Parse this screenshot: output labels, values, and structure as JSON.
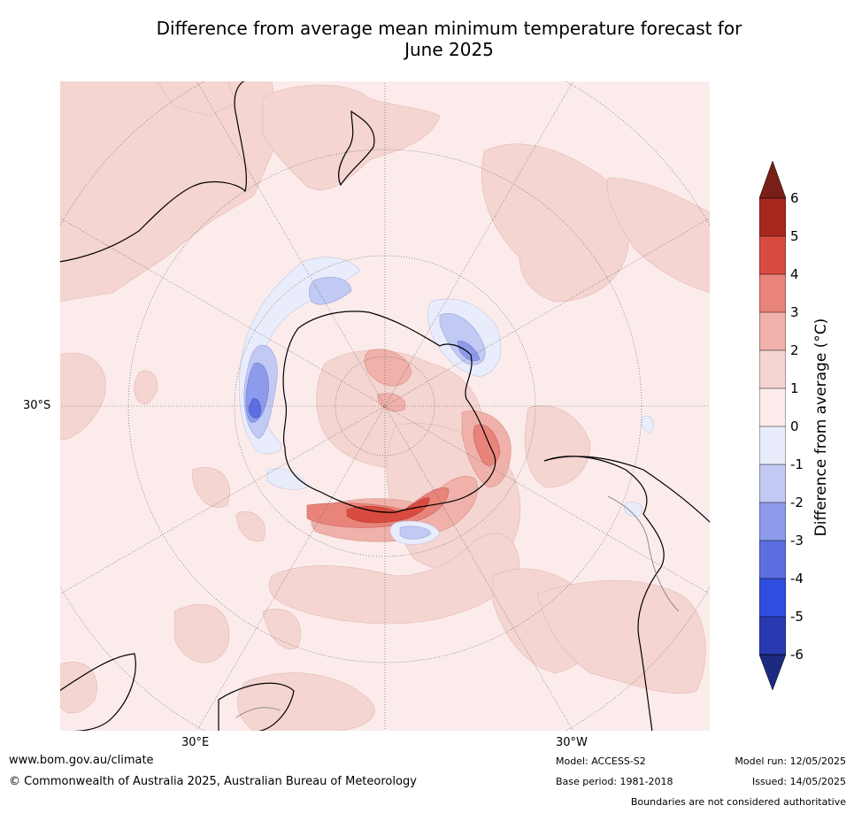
{
  "title_line1": "Difference from average mean minimum temperature forecast for",
  "title_line2": "June 2025",
  "map": {
    "projection": "south-polar-stereographic",
    "lat_label": "30°S",
    "lon_labels": {
      "east": "30°E",
      "west": "30°W"
    }
  },
  "colorbar": {
    "label": "Difference from average ($^\\circ$C)",
    "label_display": "Difference from average (°C)",
    "ticks": [
      "6",
      "5",
      "4",
      "3",
      "2",
      "1",
      "0",
      "-1",
      "-2",
      "-3",
      "-4",
      "-5",
      "-6"
    ],
    "colors": {
      "over": "#7a1f18",
      "5_6": "#a8281f",
      "4_5": "#d94b40",
      "3_4": "#e8847a",
      "2_3": "#efb1aa",
      "1_2": "#f4d5d1",
      "0_1": "#fbeceb",
      "m1_0": "#e9ecfa",
      "m2_m1": "#c2c9f2",
      "m3_m2": "#8d9bea",
      "m4_m3": "#5b6fe0",
      "m5_m4": "#2f4ee0",
      "m6_m5": "#283ab0",
      "under": "#1c2a80"
    }
  },
  "footer": {
    "website": "www.bom.gov.au/climate",
    "copyright": "© Commonwealth of Australia 2025, Australian Bureau of Meteorology",
    "model": "Model: ACCESS-S2",
    "base_period": "Base period: 1981-2018",
    "model_run": "Model run: 12/05/2025",
    "issued": "Issued: 14/05/2025",
    "disclaimer": "Boundaries are not considered authoritative"
  }
}
